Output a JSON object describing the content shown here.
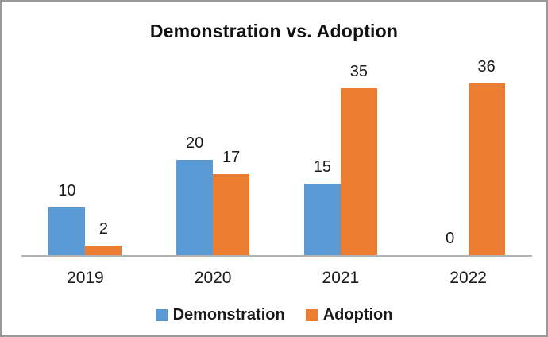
{
  "chart_data": {
    "type": "bar",
    "title": "Demonstration vs. Adoption",
    "categories": [
      "2019",
      "2020",
      "2021",
      "2022"
    ],
    "series": [
      {
        "name": "Demonstration",
        "color": "#5B9BD5",
        "values": [
          10,
          20,
          15,
          0
        ]
      },
      {
        "name": "Adoption",
        "color": "#ED7D31",
        "values": [
          2,
          17,
          35,
          36
        ]
      }
    ],
    "xlabel": "",
    "ylabel": "",
    "ylim": [
      0,
      36
    ],
    "grid": false,
    "data_labels": true,
    "legend_position": "bottom"
  },
  "colors": {
    "demonstration": "#5B9BD5",
    "adoption": "#ED7D31",
    "axis_line": "#b3b3b3",
    "frame_border": "#999999",
    "text": "#1a1a1a",
    "background": "#ffffff"
  }
}
